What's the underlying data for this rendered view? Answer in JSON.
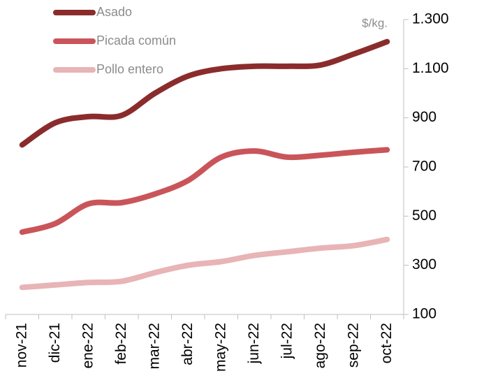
{
  "chart_data": {
    "type": "line",
    "y_axis_label": "$/kg.",
    "categories": [
      "nov-21",
      "dic-21",
      "ene-22",
      "feb-22",
      "mar-22",
      "abr-22",
      "may-22",
      "jun-22",
      "jul-22",
      "ago-22",
      "sep-22",
      "oct-22"
    ],
    "series": [
      {
        "name": "Asado",
        "color": "#8b2c2c",
        "values": [
          790,
          880,
          905,
          910,
          1000,
          1070,
          1100,
          1110,
          1110,
          1115,
          1160,
          1210
        ]
      },
      {
        "name": "Picada común",
        "color": "#c9555a",
        "values": [
          435,
          470,
          550,
          555,
          590,
          645,
          740,
          765,
          740,
          748,
          760,
          770
        ]
      },
      {
        "name": "Pollo entero",
        "color": "#e8b4b6",
        "values": [
          210,
          220,
          230,
          235,
          270,
          300,
          315,
          340,
          355,
          370,
          380,
          405
        ]
      }
    ],
    "ylim": [
      100,
      1300
    ],
    "yticks": [
      100,
      300,
      500,
      700,
      900,
      {
        "value": 1100,
        "label": "1.100"
      },
      {
        "value": 1300,
        "label": "1.300"
      }
    ]
  }
}
